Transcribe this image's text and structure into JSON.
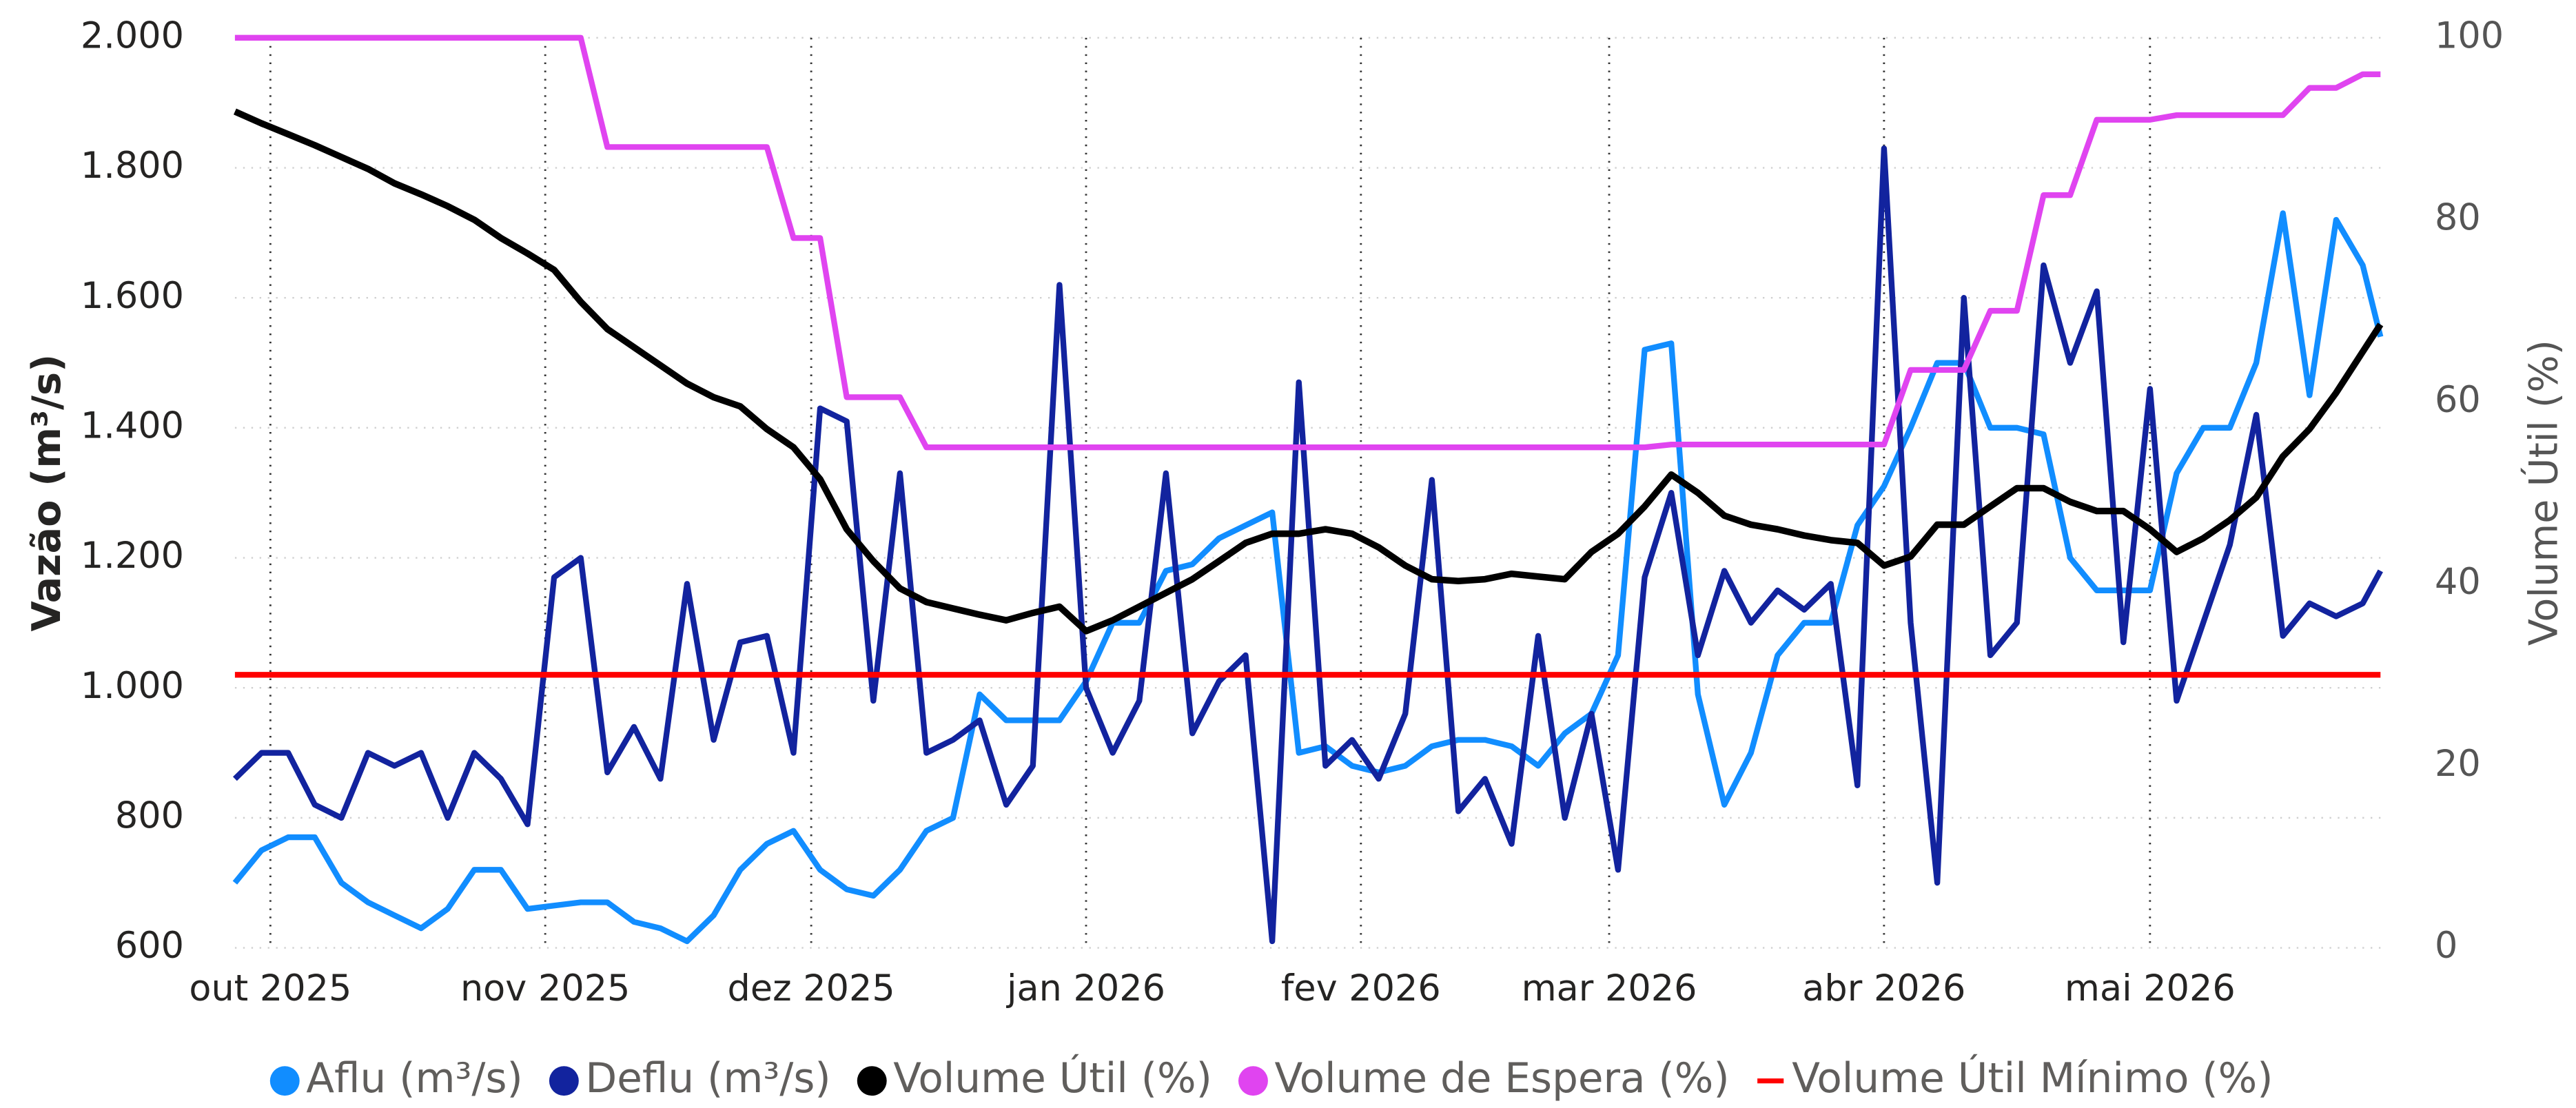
{
  "chart_data": {
    "type": "line",
    "ylabel": "Vazão (m³/s)",
    "y2label": "Volume Útil (%)",
    "x": [
      1,
      4,
      7,
      10,
      13,
      16,
      19,
      22,
      25,
      28,
      31,
      34,
      37,
      40,
      43,
      46,
      49,
      52,
      55,
      58,
      61,
      64,
      67,
      70,
      73,
      76,
      79,
      82,
      85,
      88,
      91,
      94,
      97,
      100,
      103,
      106,
      109,
      112,
      115,
      118,
      121,
      124,
      127,
      130,
      133,
      136,
      139,
      142,
      145,
      148,
      151,
      154,
      157,
      160,
      163,
      166,
      169,
      172,
      175,
      178,
      181,
      184,
      187,
      190,
      193,
      196,
      199,
      202,
      205,
      208,
      211,
      214,
      217,
      220,
      223,
      226,
      229,
      232,
      235,
      238,
      241,
      243
    ],
    "xlim": [
      1,
      243
    ],
    "xticks": [
      {
        "value": 5,
        "label": "out 2025"
      },
      {
        "value": 36,
        "label": "nov 2025"
      },
      {
        "value": 66,
        "label": "dez 2025"
      },
      {
        "value": 97,
        "label": "jan 2026"
      },
      {
        "value": 128,
        "label": "fev 2026"
      },
      {
        "value": 156,
        "label": "mar 2026"
      },
      {
        "value": 187,
        "label": "abr 2026"
      },
      {
        "value": 217,
        "label": "mai 2026"
      }
    ],
    "ylim": [
      600,
      2000
    ],
    "yticks": [
      600,
      800,
      {
        "value": 1000,
        "label": "1.000"
      },
      {
        "value": 1200,
        "label": "1.200"
      },
      {
        "value": 1400,
        "label": "1.400"
      },
      {
        "value": 1600,
        "label": "1.600"
      },
      {
        "value": 1800,
        "label": "1.800"
      },
      {
        "value": 2000,
        "label": "2.000"
      }
    ],
    "y2lim": [
      0,
      100
    ],
    "y2ticks": [
      0,
      20,
      40,
      60,
      80,
      100
    ],
    "grid": true,
    "legend": "bottom",
    "series": [
      {
        "name": "Aflu (m³/s)",
        "color": "#118DFF",
        "values": [
          700,
          750,
          770,
          770,
          700,
          670,
          650,
          630,
          660,
          720,
          720,
          660,
          665,
          670,
          670,
          640,
          630,
          610,
          650,
          720,
          760,
          780,
          720,
          690,
          680,
          720,
          780,
          800,
          990,
          950,
          950,
          950,
          1010,
          1100,
          1100,
          1180,
          1190,
          1230,
          1250,
          1270,
          900,
          910,
          880,
          870,
          880,
          910,
          920,
          920,
          910,
          880,
          930,
          960,
          1050,
          1520,
          1530,
          990,
          820,
          900,
          1050,
          1100,
          1100,
          1250,
          1310,
          1400,
          1500,
          1500,
          1400,
          1400,
          1390,
          1200,
          1150,
          1150,
          1150,
          1330,
          1400,
          1400,
          1500,
          1730,
          1450,
          1720,
          1650,
          1540
        ]
      },
      {
        "name": "Deflu (m³/s)",
        "color": "#12239E",
        "values": [
          860,
          900,
          900,
          820,
          800,
          900,
          880,
          900,
          800,
          900,
          860,
          790,
          1170,
          1200,
          870,
          940,
          860,
          1160,
          920,
          1070,
          1080,
          900,
          1430,
          1410,
          980,
          1330,
          900,
          920,
          950,
          820,
          880,
          1620,
          1000,
          900,
          980,
          1330,
          930,
          1010,
          1050,
          610,
          1470,
          880,
          920,
          860,
          960,
          1320,
          810,
          860,
          760,
          1080,
          800,
          960,
          720,
          1170,
          1300,
          1050,
          1180,
          1100,
          1150,
          1120,
          1160,
          850,
          1830,
          1100,
          700,
          1600,
          1050,
          1100,
          1650,
          1500,
          1610,
          1070,
          1460,
          980,
          1100,
          1220,
          1420,
          1080,
          1130,
          1110,
          1130,
          1180
        ]
      },
      {
        "name": "Volume Útil (%)",
        "color": "#000000",
        "axis": "y2",
        "values": [
          91.9,
          90.6,
          89.4,
          88.2,
          86.9,
          85.6,
          84.0,
          82.8,
          81.5,
          80.0,
          78.0,
          76.3,
          74.5,
          71.0,
          68.0,
          66.0,
          64.0,
          62.0,
          60.5,
          59.5,
          57.0,
          55.0,
          51.5,
          46.0,
          42.5,
          39.5,
          38.0,
          37.3,
          36.6,
          36.0,
          36.8,
          37.5,
          34.8,
          36.0,
          37.5,
          39.0,
          40.5,
          42.5,
          44.5,
          45.5,
          45.5,
          46.0,
          45.5,
          44.0,
          42.0,
          40.5,
          40.3,
          40.5,
          41.1,
          40.8,
          40.5,
          43.5,
          45.5,
          48.5,
          52.0,
          50.0,
          47.5,
          46.5,
          46.0,
          45.3,
          44.8,
          44.5,
          42.0,
          43.0,
          46.5,
          46.5,
          48.5,
          50.5,
          50.5,
          49.0,
          48.0,
          48.0,
          46.0,
          43.5,
          45.0,
          47.0,
          49.5,
          54.0,
          57.0,
          61.0,
          65.5,
          68.5
        ]
      },
      {
        "name": "Volume de Espera (%)",
        "color": "#E044F0",
        "axis": "y2",
        "values": [
          100,
          100,
          100,
          100,
          100,
          100,
          100,
          100,
          100,
          100,
          100,
          100,
          100,
          100,
          88,
          88,
          88,
          88,
          88,
          88,
          88,
          78,
          78,
          60.5,
          60.5,
          60.5,
          55,
          55,
          55,
          55,
          55,
          55,
          55,
          55,
          55,
          55,
          55,
          55,
          55,
          55,
          55,
          55,
          55,
          55,
          55,
          55,
          55,
          55,
          55,
          55,
          55,
          55,
          55,
          55,
          55.3,
          55.3,
          55.3,
          55.3,
          55.3,
          55.3,
          55.3,
          55.3,
          55.3,
          63.5,
          63.5,
          63.5,
          70,
          70,
          82.7,
          82.7,
          91,
          91,
          91,
          91.5,
          91.5,
          91.5,
          91.5,
          91.5,
          94.5,
          94.5,
          96,
          96
        ]
      },
      {
        "name": "Volume Útil Mínimo (%)",
        "color": "#FF0000",
        "axis": "y2",
        "legend_marker": "line",
        "values": [
          30,
          30,
          30,
          30,
          30,
          30,
          30,
          30,
          30,
          30,
          30,
          30,
          30,
          30,
          30,
          30,
          30,
          30,
          30,
          30,
          30,
          30,
          30,
          30,
          30,
          30,
          30,
          30,
          30,
          30,
          30,
          30,
          30,
          30,
          30,
          30,
          30,
          30,
          30,
          30,
          30,
          30,
          30,
          30,
          30,
          30,
          30,
          30,
          30,
          30,
          30,
          30,
          30,
          30,
          30,
          30,
          30,
          30,
          30,
          30,
          30,
          30,
          30,
          30,
          30,
          30,
          30,
          30,
          30,
          30,
          30,
          30,
          30,
          30,
          30,
          30,
          30,
          30,
          30,
          30,
          30,
          30
        ]
      }
    ]
  }
}
